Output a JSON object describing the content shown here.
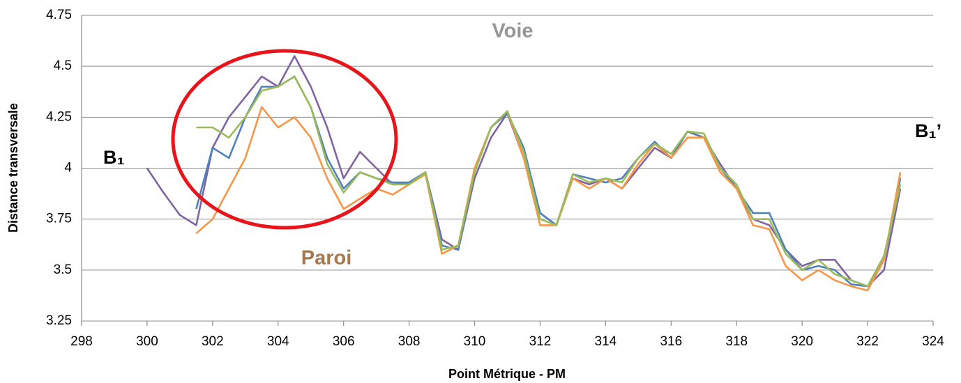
{
  "chart_data": {
    "type": "line",
    "x_label": "Point Métrique - PM",
    "y_label": "Distance transversale",
    "annotations": [
      "Voie",
      "Paroi",
      "B₁",
      "B₁’"
    ],
    "x": [
      300,
      300.5,
      301,
      301.5,
      302,
      302.5,
      303,
      303.5,
      304,
      304.5,
      305,
      305.5,
      306,
      306.5,
      307,
      307.5,
      308,
      308.5,
      309,
      309.5,
      310,
      310.5,
      311,
      311.5,
      312,
      312.5,
      313,
      313.5,
      314,
      314.5,
      315,
      315.5,
      316,
      316.5,
      317,
      317.5,
      318,
      318.5,
      319,
      319.5,
      320,
      320.5,
      321,
      321.5,
      322,
      322.5,
      323
    ],
    "series": [
      {
        "color": "#8064a2",
        "values": [
          4.0,
          3.88,
          3.77,
          3.72,
          4.1,
          4.25,
          4.35,
          4.45,
          4.4,
          4.55,
          4.4,
          4.2,
          3.95,
          4.08,
          4.0,
          3.92,
          3.93,
          3.98,
          3.65,
          3.6,
          3.95,
          4.15,
          4.27,
          4.05,
          3.78,
          3.72,
          3.95,
          3.92,
          3.95,
          3.9,
          4.0,
          4.1,
          4.05,
          4.18,
          4.15,
          4.02,
          3.9,
          3.75,
          3.72,
          3.6,
          3.52,
          3.55,
          3.55,
          3.45,
          3.42,
          3.5,
          3.9
        ]
      },
      {
        "color": "#4f81bd",
        "values": [
          null,
          null,
          null,
          3.8,
          4.1,
          4.05,
          4.25,
          4.4,
          4.4,
          4.45,
          4.3,
          4.05,
          3.9,
          3.98,
          3.95,
          3.93,
          3.93,
          3.98,
          3.62,
          3.6,
          3.98,
          4.2,
          4.27,
          4.1,
          3.78,
          3.72,
          3.97,
          3.95,
          3.93,
          3.95,
          4.05,
          4.13,
          4.05,
          4.18,
          4.15,
          4.0,
          3.9,
          3.78,
          3.78,
          3.6,
          3.5,
          3.52,
          3.5,
          3.43,
          3.42,
          3.55,
          3.95
        ]
      },
      {
        "color": "#f79646",
        "values": [
          null,
          null,
          null,
          3.68,
          3.75,
          3.9,
          4.05,
          4.3,
          4.2,
          4.25,
          4.15,
          3.95,
          3.8,
          3.85,
          3.9,
          3.87,
          3.92,
          3.97,
          3.58,
          3.62,
          4.0,
          4.2,
          4.28,
          4.05,
          3.72,
          3.72,
          3.95,
          3.9,
          3.95,
          3.9,
          4.02,
          4.12,
          4.05,
          4.15,
          4.15,
          3.98,
          3.9,
          3.72,
          3.7,
          3.52,
          3.45,
          3.5,
          3.45,
          3.42,
          3.4,
          3.55,
          3.98
        ]
      },
      {
        "color": "#9bbb59",
        "values": [
          null,
          null,
          null,
          4.2,
          4.2,
          4.15,
          4.25,
          4.38,
          4.4,
          4.45,
          4.3,
          4.02,
          3.88,
          3.98,
          3.95,
          3.92,
          3.92,
          3.98,
          3.6,
          3.62,
          3.98,
          4.2,
          4.28,
          4.08,
          3.75,
          3.72,
          3.97,
          3.93,
          3.95,
          3.93,
          4.05,
          4.12,
          4.07,
          4.18,
          4.17,
          4.0,
          3.92,
          3.75,
          3.75,
          3.58,
          3.5,
          3.55,
          3.48,
          3.45,
          3.42,
          3.57,
          3.92
        ]
      }
    ],
    "xlim": [
      298,
      324
    ],
    "xticks": [
      298,
      300,
      302,
      304,
      306,
      308,
      310,
      312,
      314,
      316,
      318,
      320,
      322,
      324
    ],
    "ylim": [
      3.25,
      4.75
    ],
    "yticks": [
      3.25,
      3.5,
      3.75,
      4,
      4.25,
      4.5,
      4.75
    ],
    "grid": true
  }
}
